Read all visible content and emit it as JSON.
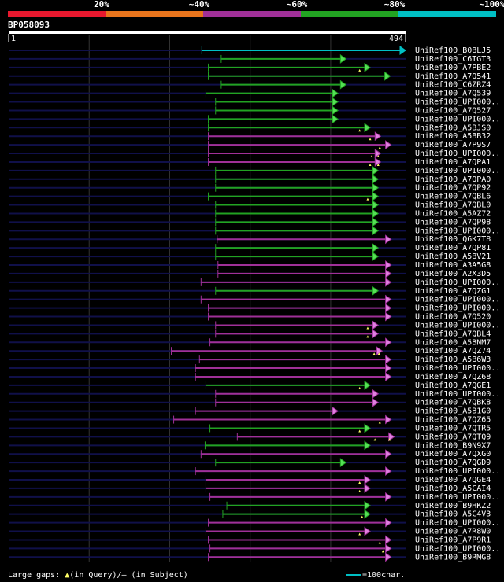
{
  "query_id": "BP058093",
  "identity_scale": {
    "labels": [
      "20%",
      "~40%",
      "~60%",
      "~80%",
      "~100%"
    ],
    "colors": [
      "#e8182e",
      "#e8741c",
      "#a03098",
      "#22a322",
      "#00bfc4"
    ]
  },
  "chart_data": {
    "type": "alignment",
    "query_length": 494,
    "axis_start_label": "1",
    "axis_end_label": "494",
    "hits": [
      {
        "name": "UniRef100_B0BLJ5",
        "start": 241,
        "end": 494,
        "color": "cyan"
      },
      {
        "name": "UniRef100_C6TGT3",
        "start": 265,
        "end": 420,
        "color": "green"
      },
      {
        "name": "UniRef100_A7PBE2",
        "start": 249,
        "end": 450,
        "color": "green",
        "gaps": [
          437
        ]
      },
      {
        "name": "UniRef100_A7Q541",
        "start": 249,
        "end": 475,
        "color": "green"
      },
      {
        "name": "UniRef100_C6ZRZ4",
        "start": 265,
        "end": 420,
        "color": "green"
      },
      {
        "name": "UniRef100_A7Q539",
        "start": 246,
        "end": 410,
        "color": "green"
      },
      {
        "name": "UniRef100_UPI000..",
        "start": 258,
        "end": 410,
        "color": "green"
      },
      {
        "name": "UniRef100_A7Q527",
        "start": 258,
        "end": 410,
        "color": "green"
      },
      {
        "name": "UniRef100_UPI000..",
        "start": 249,
        "end": 410,
        "color": "green"
      },
      {
        "name": "UniRef100_A5BJS0",
        "start": 249,
        "end": 450,
        "color": "green",
        "gaps": [
          437
        ]
      },
      {
        "name": "UniRef100_A5BB32",
        "start": 249,
        "end": 463,
        "color": "magenta",
        "gaps": [
          450
        ]
      },
      {
        "name": "UniRef100_A7P9S7",
        "start": 249,
        "end": 476,
        "color": "magenta",
        "gaps": [
          462
        ]
      },
      {
        "name": "UniRef100_UPI000..",
        "start": 249,
        "end": 463,
        "color": "magenta",
        "gaps": [
          452,
          460
        ]
      },
      {
        "name": "UniRef100_A7QPA1",
        "start": 249,
        "end": 463,
        "color": "magenta",
        "gaps": [
          450,
          460
        ]
      },
      {
        "name": "UniRef100_UPI000..",
        "start": 258,
        "end": 460,
        "color": "green"
      },
      {
        "name": "UniRef100_A7QPA0",
        "start": 258,
        "end": 460,
        "color": "green"
      },
      {
        "name": "UniRef100_A7QP92",
        "start": 258,
        "end": 460,
        "color": "green"
      },
      {
        "name": "UniRef100_A7QBL6",
        "start": 249,
        "end": 460,
        "color": "green",
        "gaps": [
          447
        ]
      },
      {
        "name": "UniRef100_A7QBL0",
        "start": 258,
        "end": 460,
        "color": "green"
      },
      {
        "name": "UniRef100_A5AZ72",
        "start": 258,
        "end": 460,
        "color": "green"
      },
      {
        "name": "UniRef100_A7QP98",
        "start": 258,
        "end": 460,
        "color": "green"
      },
      {
        "name": "UniRef100_UPI000..",
        "start": 258,
        "end": 460,
        "color": "green"
      },
      {
        "name": "UniRef100_Q6K7T8",
        "start": 260,
        "end": 476,
        "color": "magenta"
      },
      {
        "name": "UniRef100_A7QP81",
        "start": 258,
        "end": 460,
        "color": "green"
      },
      {
        "name": "UniRef100_A5BV21",
        "start": 258,
        "end": 460,
        "color": "green"
      },
      {
        "name": "UniRef100_A3A5G8",
        "start": 261,
        "end": 476,
        "color": "magenta"
      },
      {
        "name": "UniRef100_A2X3D5",
        "start": 261,
        "end": 476,
        "color": "magenta"
      },
      {
        "name": "UniRef100_UPI000..",
        "start": 240,
        "end": 476,
        "color": "magenta"
      },
      {
        "name": "UniRef100_A7QZG1",
        "start": 258,
        "end": 460,
        "color": "green"
      },
      {
        "name": "UniRef100_UPI000..",
        "start": 240,
        "end": 476,
        "color": "magenta"
      },
      {
        "name": "UniRef100_UPI000..",
        "start": 249,
        "end": 476,
        "color": "magenta"
      },
      {
        "name": "UniRef100_A7Q520",
        "start": 249,
        "end": 476,
        "color": "magenta"
      },
      {
        "name": "UniRef100_UPI000..",
        "start": 258,
        "end": 460,
        "color": "magenta",
        "gaps": [
          447
        ]
      },
      {
        "name": "UniRef100_A7QBL4",
        "start": 258,
        "end": 460,
        "color": "magenta",
        "gaps": [
          447
        ]
      },
      {
        "name": "UniRef100_A5BNM7",
        "start": 251,
        "end": 476,
        "color": "magenta"
      },
      {
        "name": "UniRef100_A7QZ74",
        "start": 203,
        "end": 465,
        "color": "magenta",
        "gaps": [
          455,
          461
        ]
      },
      {
        "name": "UniRef100_A5B6W3",
        "start": 238,
        "end": 476,
        "color": "magenta"
      },
      {
        "name": "UniRef100_UPI000..",
        "start": 233,
        "end": 476,
        "color": "magenta"
      },
      {
        "name": "UniRef100_A7QZ68",
        "start": 233,
        "end": 476,
        "color": "magenta"
      },
      {
        "name": "UniRef100_A7QGE1",
        "start": 246,
        "end": 450,
        "color": "green",
        "gaps": [
          437
        ]
      },
      {
        "name": "UniRef100_UPI000..",
        "start": 258,
        "end": 460,
        "color": "magenta"
      },
      {
        "name": "UniRef100_A7QBK8",
        "start": 258,
        "end": 460,
        "color": "magenta"
      },
      {
        "name": "UniRef100_A5B1G0",
        "start": 233,
        "end": 410,
        "color": "magenta"
      },
      {
        "name": "UniRef100_A7QZ65",
        "start": 206,
        "end": 476,
        "color": "magenta",
        "gaps": [
          462
        ]
      },
      {
        "name": "UniRef100_A7QTR5",
        "start": 251,
        "end": 450,
        "color": "green",
        "gaps": [
          437
        ]
      },
      {
        "name": "UniRef100_A7QTQ9",
        "start": 285,
        "end": 480,
        "color": "magenta",
        "gaps": [
          456,
          474
        ]
      },
      {
        "name": "UniRef100_B9N9X7",
        "start": 245,
        "end": 450,
        "color": "green"
      },
      {
        "name": "UniRef100_A7QXG0",
        "start": 240,
        "end": 476,
        "color": "magenta"
      },
      {
        "name": "UniRef100_A7QGD9",
        "start": 258,
        "end": 420,
        "color": "green"
      },
      {
        "name": "UniRef100_UPI000..",
        "start": 233,
        "end": 476,
        "color": "magenta"
      },
      {
        "name": "UniRef100_A7QGE4",
        "start": 246,
        "end": 450,
        "color": "magenta",
        "gaps": [
          437
        ]
      },
      {
        "name": "UniRef100_A5CAI4",
        "start": 246,
        "end": 450,
        "color": "magenta",
        "gaps": [
          437
        ]
      },
      {
        "name": "UniRef100_UPI000..",
        "start": 251,
        "end": 476,
        "color": "magenta"
      },
      {
        "name": "UniRef100_B9HKZ2",
        "start": 272,
        "end": 450,
        "color": "green"
      },
      {
        "name": "UniRef100_A5C4V3",
        "start": 267,
        "end": 450,
        "color": "green",
        "gaps": [
          440
        ]
      },
      {
        "name": "UniRef100_UPI000..",
        "start": 249,
        "end": 476,
        "color": "magenta"
      },
      {
        "name": "UniRef100_A7R8W0",
        "start": 246,
        "end": 450,
        "color": "magenta",
        "gaps": [
          437
        ]
      },
      {
        "name": "UniRef100_A7P9R1",
        "start": 249,
        "end": 476,
        "color": "magenta",
        "gaps": [
          462
        ]
      },
      {
        "name": "UniRef100_UPI000..",
        "start": 251,
        "end": 476,
        "color": "magenta",
        "gaps": [
          466
        ]
      },
      {
        "name": "UniRef100_B9RMG8",
        "start": 249,
        "end": 476,
        "color": "magenta"
      }
    ]
  },
  "footer": {
    "gaps_label": "Large gaps: ",
    "query_marker": "▲",
    "query_label": "(in Query)/",
    "subject_label": "– (in Subject)"
  },
  "scale_note": "=100char."
}
